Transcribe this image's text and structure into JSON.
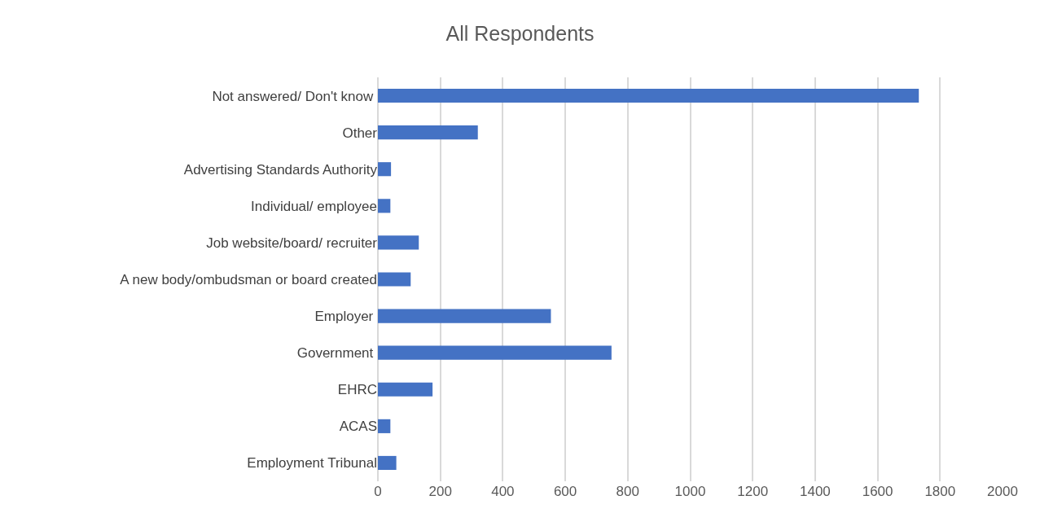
{
  "chart_data": {
    "type": "bar",
    "orientation": "horizontal",
    "title": "All Respondents",
    "categories": [
      "Not answered/ Don't know ",
      "Other",
      "Advertising Standards Authority",
      "Individual/ employee",
      "Job website/board/ recruiter",
      "A new body/ombudsman or board created",
      "Employer ",
      "Government ",
      "EHRC",
      "ACAS",
      "Employment Tribunal"
    ],
    "values": [
      1732,
      320,
      42,
      40,
      131,
      105,
      554,
      748,
      175,
      40,
      59
    ],
    "color": "#4472c4",
    "xlim": [
      0,
      2000
    ],
    "xticks": [
      0,
      200,
      400,
      600,
      800,
      1000,
      1200,
      1400,
      1600,
      1800,
      2000
    ],
    "grid": "x"
  }
}
